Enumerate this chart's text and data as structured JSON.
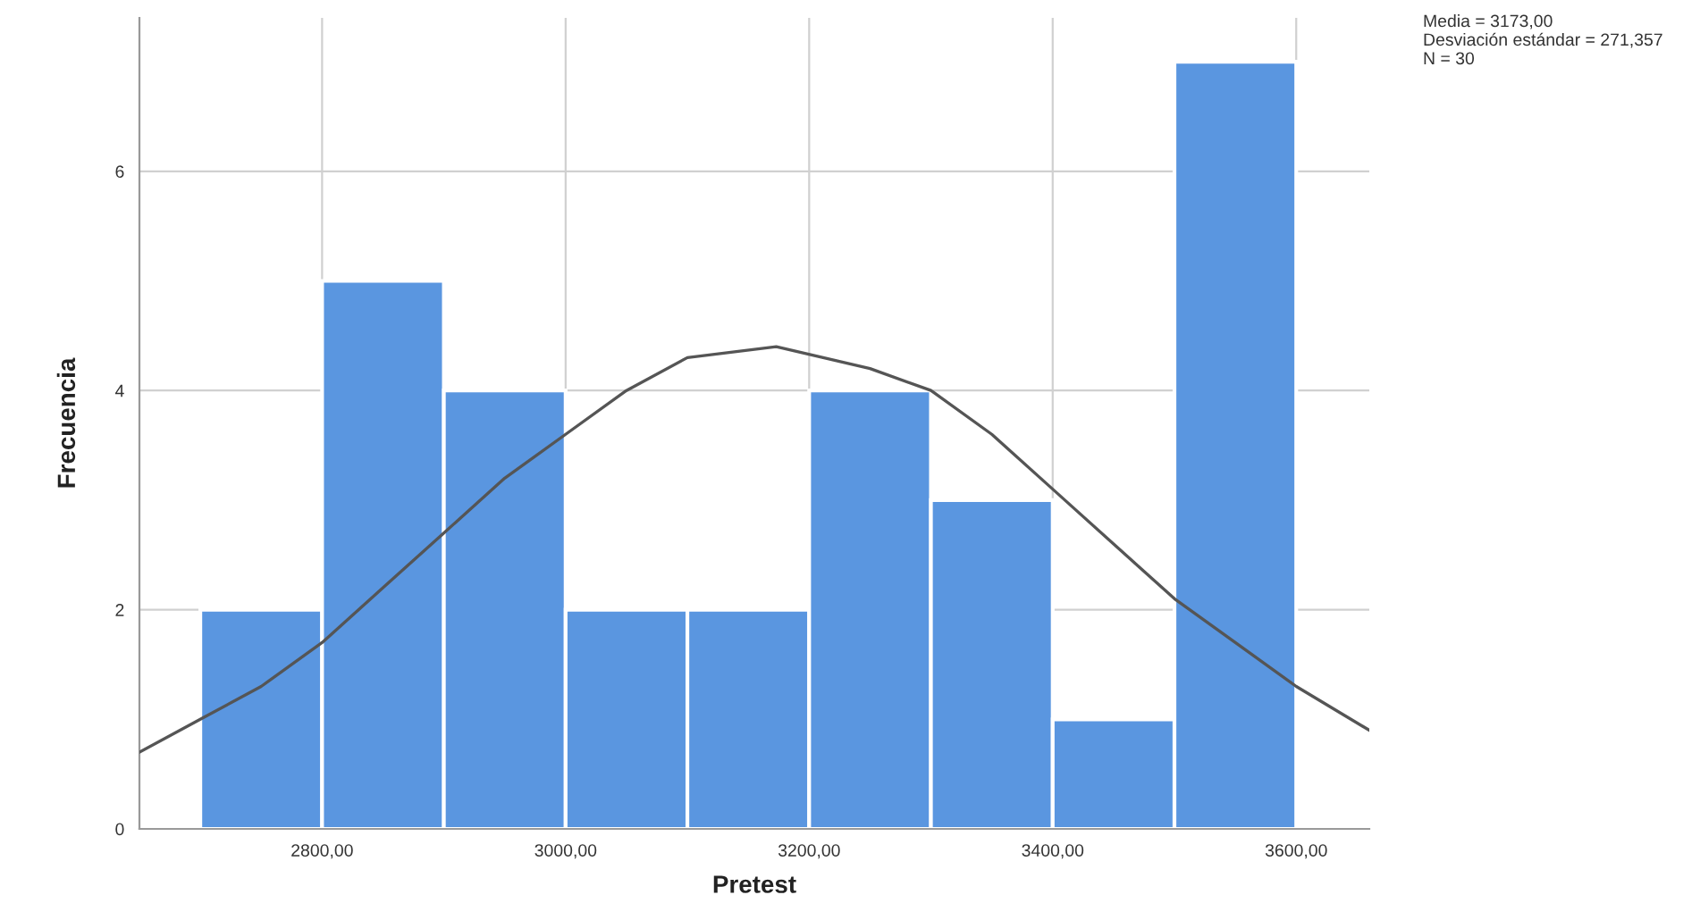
{
  "chart_data": {
    "type": "histogram",
    "xlabel": "Pretest",
    "ylabel": "Frecuencia",
    "bins": [
      2700,
      2800,
      2900,
      3000,
      3100,
      3200,
      3300,
      3400,
      3500,
      3600
    ],
    "values": [
      2,
      5,
      4,
      2,
      2,
      4,
      3,
      1,
      7
    ],
    "color": "#5a96e0",
    "series": [
      {
        "type": "line",
        "color": "#555555",
        "x": [
          2650,
          2700,
          2750,
          2800,
          2850,
          2900,
          2950,
          3000,
          3050,
          3100,
          3173,
          3250,
          3300,
          3350,
          3400,
          3450,
          3500,
          3550,
          3600,
          3660
        ],
        "values": [
          0.7,
          1.0,
          1.3,
          1.7,
          2.2,
          2.7,
          3.2,
          3.6,
          4.0,
          4.3,
          4.4,
          4.2,
          4.0,
          3.6,
          3.1,
          2.6,
          2.1,
          1.7,
          1.3,
          0.9
        ]
      }
    ],
    "xlim": [
      2650,
      3660
    ],
    "ylim": [
      0,
      7.4
    ],
    "xticks": [
      {
        "value": 2800,
        "label": "2800,00"
      },
      {
        "value": 3000,
        "label": "3000,00"
      },
      {
        "value": 3200,
        "label": "3200,00"
      },
      {
        "value": 3400,
        "label": "3400,00"
      },
      {
        "value": 3600,
        "label": "3600,00"
      }
    ],
    "yticks": [
      0,
      2,
      4,
      6
    ],
    "grid": true,
    "annotations": [
      "Media = 3173,00\nDesviación estándar = 271,357\nN = 30"
    ]
  }
}
